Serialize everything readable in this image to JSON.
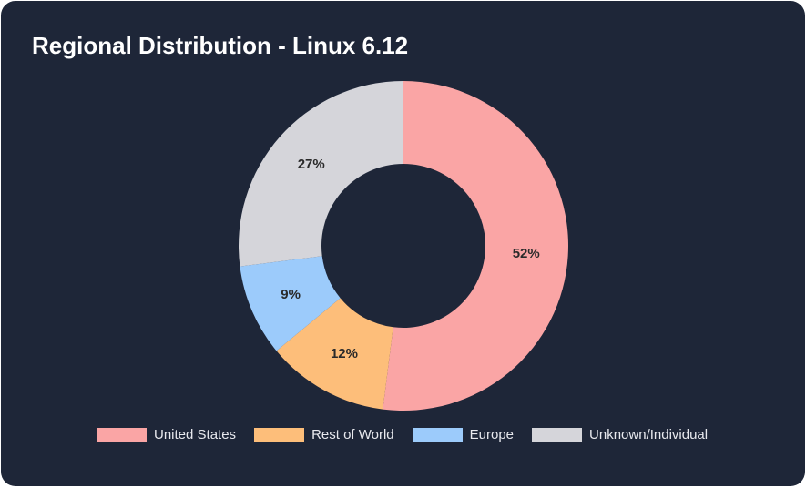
{
  "title": "Regional Distribution - Linux 6.12",
  "chart_data": {
    "type": "pie",
    "variant": "donut",
    "title": "Regional Distribution - Linux 6.12",
    "legend_position": "bottom",
    "slices": [
      {
        "name": "United States",
        "value": 52,
        "label": "52%",
        "color": "#faa5a5"
      },
      {
        "name": "Rest of World",
        "value": 12,
        "label": "12%",
        "color": "#fdbe7a"
      },
      {
        "name": "Europe",
        "value": 9,
        "label": "9%",
        "color": "#9ccbfb"
      },
      {
        "name": "Unknown/Individual",
        "value": 27,
        "label": "27%",
        "color": "#d5d5da"
      }
    ]
  },
  "legend": [
    {
      "label": "United States",
      "color": "#faa5a5"
    },
    {
      "label": "Rest of World",
      "color": "#fdbe7a"
    },
    {
      "label": "Europe",
      "color": "#9ccbfb"
    },
    {
      "label": "Unknown/Individual",
      "color": "#d5d5da"
    }
  ]
}
